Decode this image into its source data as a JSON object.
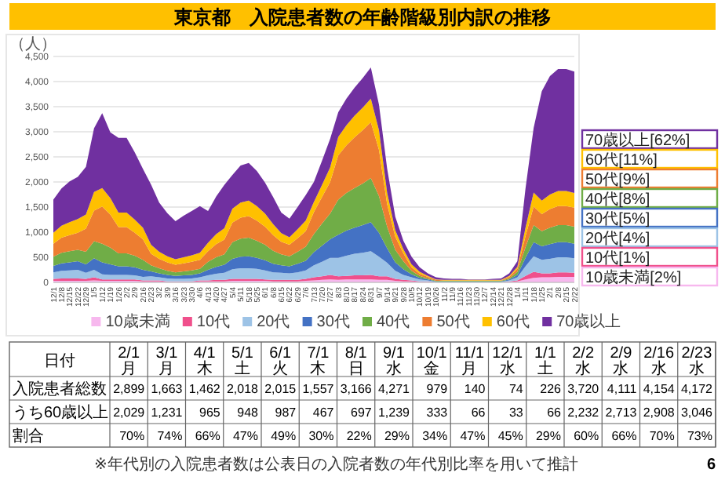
{
  "chart_data": [
    {
      "type": "area",
      "title": "東京都　入院患者数の年齢階級別内訳の推移",
      "ylabel": "（人）",
      "stacked": true,
      "grid": "y",
      "legend": "bottom",
      "categories": [
        "12/1",
        "12/8",
        "12/15",
        "12/22",
        "12/29",
        "1/5",
        "1/12",
        "1/19",
        "1/26",
        "2/2",
        "2/9",
        "2/16",
        "2/23",
        "3/2",
        "3/9",
        "3/16",
        "3/23",
        "3/30",
        "4/6",
        "4/13",
        "4/20",
        "4/27",
        "5/4",
        "5/11",
        "5/18",
        "5/25",
        "6/1",
        "6/8",
        "6/15",
        "6/22",
        "6/29",
        "7/6",
        "7/13",
        "7/20",
        "7/27",
        "8/3",
        "8/10",
        "8/17",
        "8/24",
        "8/31",
        "9/7",
        "9/14",
        "9/21",
        "9/28",
        "10/5",
        "10/12",
        "10/19",
        "10/26",
        "11/2",
        "11/9",
        "11/16",
        "11/23",
        "11/30",
        "12/7",
        "12/14",
        "12/21",
        "12/28",
        "1/4",
        "1/11",
        "1/18",
        "1/25",
        "2/1",
        "2/8",
        "2/15",
        "2/22"
      ],
      "ylim": [
        0,
        4500
      ],
      "yticks": [
        0,
        500,
        {
          "value": 1000,
          "label": "1,000"
        },
        {
          "value": 1500,
          "label": "1,500"
        },
        {
          "value": 2000,
          "label": "2,000"
        },
        {
          "value": 2500,
          "label": "2,500"
        },
        {
          "value": 3000,
          "label": "3,000"
        },
        {
          "value": 3500,
          "label": "3,500"
        },
        {
          "value": 4000,
          "label": "4,000"
        },
        {
          "value": 4500,
          "label": "4,500"
        }
      ],
      "annotations": [
        "70歳以上[62%]",
        "60代[11%]",
        "50代[9%]",
        "40代[8%]",
        "30代[5%]",
        "20代[4%]",
        "10代[1%]",
        "10歳未満[2%]"
      ],
      "series": [
        {
          "name": "10歳未満",
          "color": "#f7b8ee",
          "values": [
            30,
            30,
            30,
            30,
            30,
            40,
            30,
            30,
            30,
            30,
            30,
            20,
            20,
            20,
            10,
            10,
            10,
            10,
            20,
            20,
            20,
            20,
            30,
            30,
            30,
            30,
            30,
            20,
            20,
            20,
            20,
            30,
            40,
            50,
            60,
            50,
            60,
            60,
            60,
            60,
            50,
            50,
            30,
            20,
            20,
            10,
            10,
            0,
            0,
            0,
            0,
            0,
            0,
            0,
            0,
            0,
            10,
            20,
            60,
            90,
            100,
            100,
            110,
            110,
            110
          ]
        },
        {
          "name": "10代",
          "color": "#f0508c",
          "values": [
            40,
            50,
            50,
            50,
            40,
            60,
            30,
            30,
            30,
            30,
            30,
            20,
            20,
            20,
            10,
            10,
            10,
            10,
            20,
            20,
            30,
            30,
            40,
            40,
            40,
            40,
            30,
            30,
            30,
            30,
            30,
            40,
            60,
            70,
            90,
            70,
            70,
            80,
            80,
            90,
            70,
            70,
            40,
            30,
            20,
            10,
            10,
            0,
            0,
            0,
            0,
            0,
            0,
            0,
            0,
            0,
            10,
            20,
            70,
            120,
            80,
            80,
            90,
            90,
            80
          ]
        },
        {
          "name": "20代",
          "color": "#9dc3e6",
          "values": [
            130,
            150,
            160,
            170,
            120,
            150,
            100,
            90,
            90,
            90,
            80,
            70,
            80,
            60,
            60,
            50,
            50,
            60,
            60,
            100,
            120,
            140,
            190,
            210,
            210,
            200,
            180,
            150,
            140,
            130,
            150,
            170,
            240,
            290,
            340,
            370,
            400,
            430,
            450,
            470,
            390,
            270,
            160,
            100,
            60,
            40,
            20,
            10,
            10,
            10,
            10,
            10,
            10,
            10,
            10,
            10,
            20,
            60,
            190,
            310,
            270,
            290,
            300,
            300,
            290
          ]
        },
        {
          "name": "30代",
          "color": "#4472c4",
          "values": [
            130,
            150,
            160,
            170,
            170,
            230,
            240,
            210,
            170,
            170,
            160,
            140,
            100,
            80,
            70,
            60,
            70,
            70,
            80,
            110,
            140,
            160,
            210,
            230,
            240,
            220,
            200,
            170,
            150,
            140,
            170,
            190,
            260,
            320,
            370,
            460,
            500,
            520,
            550,
            580,
            480,
            290,
            170,
            110,
            60,
            30,
            20,
            10,
            10,
            10,
            10,
            10,
            10,
            10,
            10,
            10,
            20,
            50,
            170,
            280,
            270,
            290,
            300,
            300,
            290
          ]
        },
        {
          "name": "40代",
          "color": "#70ad47",
          "values": [
            180,
            210,
            220,
            230,
            250,
            340,
            370,
            330,
            260,
            260,
            230,
            200,
            120,
            100,
            80,
            70,
            80,
            90,
            90,
            160,
            190,
            210,
            330,
            360,
            370,
            340,
            310,
            260,
            220,
            200,
            240,
            280,
            360,
            440,
            510,
            700,
            750,
            790,
            830,
            880,
            730,
            430,
            250,
            160,
            70,
            40,
            20,
            10,
            10,
            10,
            10,
            10,
            10,
            10,
            10,
            10,
            20,
            60,
            210,
            340,
            300,
            330,
            340,
            340,
            340
          ]
        },
        {
          "name": "50代",
          "color": "#ed7d31",
          "values": [
            260,
            300,
            320,
            340,
            460,
            610,
            740,
            660,
            520,
            520,
            460,
            410,
            230,
            190,
            170,
            150,
            160,
            170,
            180,
            210,
            260,
            290,
            390,
            420,
            430,
            400,
            360,
            310,
            250,
            230,
            270,
            310,
            440,
            530,
            630,
            880,
            950,
            1010,
            1060,
            1110,
            920,
            450,
            260,
            160,
            70,
            40,
            30,
            20,
            10,
            10,
            10,
            10,
            10,
            10,
            10,
            10,
            30,
            60,
            220,
            370,
            340,
            370,
            380,
            380,
            380
          ]
        },
        {
          "name": "60代",
          "color": "#ffc000",
          "values": [
            220,
            240,
            260,
            270,
            280,
            370,
            370,
            330,
            290,
            290,
            260,
            230,
            180,
            140,
            120,
            110,
            120,
            130,
            140,
            170,
            200,
            230,
            280,
            300,
            310,
            290,
            260,
            220,
            170,
            150,
            180,
            210,
            200,
            240,
            290,
            370,
            400,
            430,
            450,
            470,
            390,
            230,
            130,
            80,
            60,
            40,
            20,
            10,
            10,
            10,
            10,
            10,
            10,
            10,
            10,
            10,
            20,
            40,
            170,
            280,
            270,
            290,
            300,
            300,
            290
          ]
        },
        {
          "name": "70歳以上",
          "color": "#7030a0",
          "values": [
            660,
            740,
            810,
            840,
            950,
            1270,
            1490,
            1310,
            1490,
            1490,
            1340,
            1170,
            1200,
            980,
            860,
            760,
            830,
            880,
            930,
            630,
            750,
            860,
            670,
            740,
            750,
            700,
            620,
            540,
            410,
            370,
            440,
            510,
            400,
            480,
            570,
            490,
            530,
            560,
            590,
            620,
            510,
            480,
            270,
            170,
            150,
            90,
            50,
            40,
            30,
            20,
            20,
            10,
            10,
            10,
            20,
            30,
            50,
            110,
            780,
            1290,
            2180,
            2360,
            2430,
            2430,
            2420
          ]
        }
      ]
    },
    {
      "type": "other",
      "xlabel": "日付",
      "categories": [
        "2/1月",
        "3/1月",
        "4/1木",
        "5/1土",
        "6/1火",
        "7/1木",
        "8/1日",
        "9/1水",
        "10/1金",
        "11/1月",
        "12/1水",
        "1/1土",
        "2/2水",
        "2/9水",
        "2/16水",
        "2/23水"
      ],
      "y_categories": [
        "入院患者総数",
        "うち60歳以上",
        "割合"
      ],
      "cell_labels": [
        [
          "2,899",
          "1,663",
          "1,462",
          "2,018",
          "2,015",
          "1,557",
          "3,166",
          "4,271",
          "979",
          "140",
          "74",
          "226",
          "3,720",
          "4,111",
          "4,154",
          "4,172"
        ],
        [
          "2,029",
          "1,231",
          "965",
          "948",
          "987",
          "467",
          "697",
          "1,239",
          "333",
          "66",
          "33",
          "66",
          "2,232",
          "2,713",
          "2,908",
          "3,046"
        ],
        [
          "70%",
          "74%",
          "66%",
          "47%",
          "49%",
          "30%",
          "22%",
          "29%",
          "34%",
          "47%",
          "45%",
          "29%",
          "60%",
          "66%",
          "70%",
          "73%"
        ]
      ],
      "annotations": [
        "※年代別の入院患者数は公表日の入院者数の年代別比率を用いて推計",
        "6"
      ]
    }
  ]
}
